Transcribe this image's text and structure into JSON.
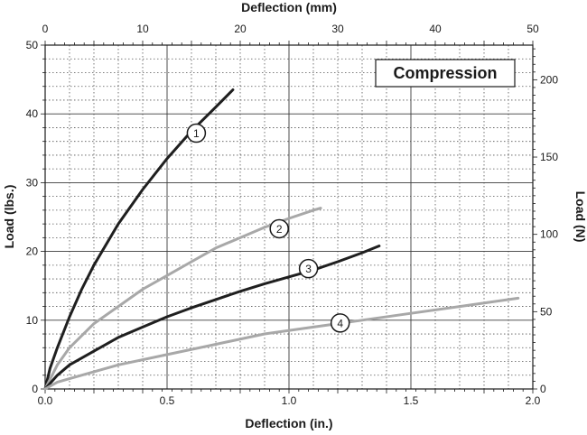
{
  "chart_data": {
    "type": "line",
    "title": "",
    "annotation": "Compression",
    "xlabel": "Deflection (in.)",
    "ylabel": "Load (lbs.)",
    "x2label": "Deflection (mm)",
    "y2label": "Load (N)",
    "xlim": [
      0,
      2.0
    ],
    "ylim": [
      0,
      50
    ],
    "x2lim": [
      0,
      50
    ],
    "y2lim": [
      0,
      222.4
    ],
    "xticks": [
      "0.0",
      "0.5",
      "1.0",
      "1.5",
      "2.0"
    ],
    "yticks": [
      "0",
      "10",
      "20",
      "30",
      "40",
      "50"
    ],
    "x2ticks": [
      "0",
      "10",
      "20",
      "30",
      "40",
      "50"
    ],
    "y2ticks": [
      "0",
      "50",
      "100",
      "150",
      "200"
    ],
    "grid": true,
    "series": [
      {
        "name": "1",
        "color": "#1f1f1f",
        "x": [
          0,
          0.02,
          0.05,
          0.1,
          0.15,
          0.2,
          0.3,
          0.4,
          0.5,
          0.6,
          0.7,
          0.77
        ],
        "y": [
          0,
          3,
          6,
          10.5,
          14.5,
          18,
          24,
          29,
          33.5,
          37.5,
          41,
          43.5
        ]
      },
      {
        "name": "2",
        "color": "#a8a8a8",
        "x": [
          0,
          0.05,
          0.1,
          0.2,
          0.3,
          0.4,
          0.5,
          0.6,
          0.7,
          0.8,
          0.9,
          1.0,
          1.1,
          1.13
        ],
        "y": [
          0,
          3.5,
          6,
          9.5,
          12,
          14.5,
          16.5,
          18.5,
          20.5,
          22,
          23.5,
          24.8,
          26,
          26.3
        ]
      },
      {
        "name": "3",
        "color": "#1f1f1f",
        "x": [
          0,
          0.05,
          0.1,
          0.2,
          0.3,
          0.4,
          0.5,
          0.6,
          0.7,
          0.8,
          0.9,
          1.0,
          1.1,
          1.2,
          1.3,
          1.37
        ],
        "y": [
          0,
          2,
          3.5,
          5.5,
          7.5,
          9,
          10.5,
          11.8,
          13,
          14.2,
          15.3,
          16.3,
          17.3,
          18.5,
          19.8,
          20.8
        ]
      },
      {
        "name": "4",
        "color": "#a8a8a8",
        "x": [
          0,
          0.05,
          0.1,
          0.2,
          0.3,
          0.5,
          0.7,
          0.9,
          1.1,
          1.3,
          1.5,
          1.7,
          1.94
        ],
        "y": [
          0,
          1,
          1.5,
          2.5,
          3.5,
          5,
          6.5,
          8,
          9,
          10,
          11,
          12,
          13.2
        ]
      }
    ],
    "curve_labels": [
      "1",
      "2",
      "3",
      "4"
    ]
  }
}
